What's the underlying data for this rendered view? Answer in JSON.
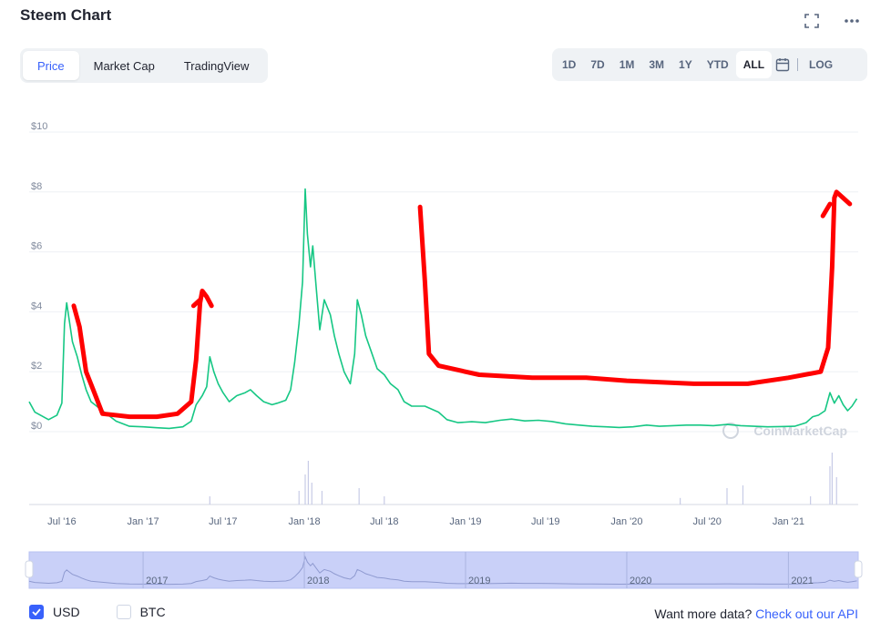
{
  "header": {
    "title": "Steem Chart"
  },
  "tabs": [
    {
      "label": "Price",
      "active": true
    },
    {
      "label": "Market Cap",
      "active": false
    },
    {
      "label": "TradingView",
      "active": false
    }
  ],
  "ranges": [
    {
      "label": "1D",
      "active": false
    },
    {
      "label": "7D",
      "active": false
    },
    {
      "label": "1M",
      "active": false
    },
    {
      "label": "3M",
      "active": false
    },
    {
      "label": "1Y",
      "active": false
    },
    {
      "label": "YTD",
      "active": false
    },
    {
      "label": "ALL",
      "active": true
    }
  ],
  "log_label": "LOG",
  "watermark": "CoinMarketCap",
  "currency": {
    "usd": "USD",
    "btc": "BTC",
    "usd_checked": true,
    "btc_checked": false
  },
  "footer": {
    "prefix": "Want more data?",
    "link": "Check out our API"
  },
  "colors": {
    "accent": "#3861fb",
    "price_line": "#16c784",
    "annotation": "#ff0000",
    "navigator": "#c9d0f8",
    "volume": "#c7cbe6"
  },
  "chart_data": {
    "type": "line",
    "series": [
      {
        "values": [
          [
            "2016-04-18",
            1.0
          ],
          [
            "2016-05-01",
            0.65
          ],
          [
            "2016-06-01",
            0.4
          ],
          [
            "2016-06-20",
            0.55
          ],
          [
            "2016-07-01",
            0.95
          ],
          [
            "2016-07-07",
            3.6
          ],
          [
            "2016-07-12",
            4.3
          ],
          [
            "2016-07-18",
            3.7
          ],
          [
            "2016-07-25",
            3.0
          ],
          [
            "2016-08-05",
            2.5
          ],
          [
            "2016-08-15",
            1.9
          ],
          [
            "2016-08-25",
            1.4
          ],
          [
            "2016-09-05",
            1.0
          ],
          [
            "2016-10-01",
            0.7
          ],
          [
            "2016-11-01",
            0.35
          ],
          [
            "2016-12-01",
            0.18
          ],
          [
            "2017-01-01",
            0.16
          ],
          [
            "2017-02-01",
            0.13
          ],
          [
            "2017-03-01",
            0.11
          ],
          [
            "2017-04-01",
            0.16
          ],
          [
            "2017-04-20",
            0.35
          ],
          [
            "2017-05-01",
            0.9
          ],
          [
            "2017-05-15",
            1.2
          ],
          [
            "2017-05-25",
            1.5
          ],
          [
            "2017-06-01",
            2.5
          ],
          [
            "2017-06-10",
            2.0
          ],
          [
            "2017-06-20",
            1.6
          ],
          [
            "2017-07-01",
            1.3
          ],
          [
            "2017-07-15",
            1.0
          ],
          [
            "2017-08-01",
            1.2
          ],
          [
            "2017-08-20",
            1.3
          ],
          [
            "2017-09-01",
            1.4
          ],
          [
            "2017-09-15",
            1.2
          ],
          [
            "2017-10-01",
            1.0
          ],
          [
            "2017-10-20",
            0.9
          ],
          [
            "2017-11-01",
            0.95
          ],
          [
            "2017-11-20",
            1.05
          ],
          [
            "2017-12-01",
            1.4
          ],
          [
            "2017-12-10",
            2.3
          ],
          [
            "2017-12-20",
            3.6
          ],
          [
            "2017-12-28",
            5.0
          ],
          [
            "2018-01-03",
            8.1
          ],
          [
            "2018-01-08",
            6.6
          ],
          [
            "2018-01-15",
            5.5
          ],
          [
            "2018-01-20",
            6.2
          ],
          [
            "2018-01-28",
            4.8
          ],
          [
            "2018-02-05",
            3.4
          ],
          [
            "2018-02-15",
            4.4
          ],
          [
            "2018-03-01",
            3.9
          ],
          [
            "2018-03-10",
            3.2
          ],
          [
            "2018-03-20",
            2.6
          ],
          [
            "2018-04-01",
            2.0
          ],
          [
            "2018-04-15",
            1.6
          ],
          [
            "2018-04-25",
            2.6
          ],
          [
            "2018-05-01",
            4.4
          ],
          [
            "2018-05-10",
            3.9
          ],
          [
            "2018-05-20",
            3.2
          ],
          [
            "2018-06-01",
            2.7
          ],
          [
            "2018-06-15",
            2.1
          ],
          [
            "2018-07-01",
            1.9
          ],
          [
            "2018-07-15",
            1.6
          ],
          [
            "2018-08-01",
            1.4
          ],
          [
            "2018-08-15",
            1.0
          ],
          [
            "2018-09-01",
            0.85
          ],
          [
            "2018-10-01",
            0.85
          ],
          [
            "2018-11-01",
            0.65
          ],
          [
            "2018-11-20",
            0.4
          ],
          [
            "2018-12-15",
            0.3
          ],
          [
            "2019-01-15",
            0.33
          ],
          [
            "2019-02-15",
            0.3
          ],
          [
            "2019-03-20",
            0.38
          ],
          [
            "2019-04-15",
            0.42
          ],
          [
            "2019-05-15",
            0.36
          ],
          [
            "2019-06-15",
            0.38
          ],
          [
            "2019-07-15",
            0.34
          ],
          [
            "2019-08-15",
            0.26
          ],
          [
            "2019-09-15",
            0.22
          ],
          [
            "2019-10-15",
            0.18
          ],
          [
            "2019-11-15",
            0.16
          ],
          [
            "2019-12-15",
            0.14
          ],
          [
            "2020-01-15",
            0.16
          ],
          [
            "2020-02-15",
            0.22
          ],
          [
            "2020-03-15",
            0.18
          ],
          [
            "2020-04-15",
            0.2
          ],
          [
            "2020-05-15",
            0.22
          ],
          [
            "2020-06-15",
            0.22
          ],
          [
            "2020-07-15",
            0.2
          ],
          [
            "2020-08-15",
            0.24
          ],
          [
            "2020-09-15",
            0.2
          ],
          [
            "2020-10-15",
            0.18
          ],
          [
            "2020-11-15",
            0.16
          ],
          [
            "2020-12-15",
            0.17
          ],
          [
            "2021-01-15",
            0.18
          ],
          [
            "2021-02-10",
            0.3
          ],
          [
            "2021-02-25",
            0.5
          ],
          [
            "2021-03-10",
            0.55
          ],
          [
            "2021-03-25",
            0.7
          ],
          [
            "2021-04-05",
            1.3
          ],
          [
            "2021-04-15",
            0.95
          ],
          [
            "2021-04-25",
            1.2
          ],
          [
            "2021-05-05",
            0.9
          ],
          [
            "2021-05-15",
            0.7
          ],
          [
            "2021-05-25",
            0.85
          ],
          [
            "2021-06-05",
            1.1
          ]
        ]
      }
    ],
    "x_range": [
      "2016-04-18",
      "2021-06-08"
    ],
    "ylim": [
      0,
      10
    ],
    "yticks": [
      "$0",
      "$2",
      "$4",
      "$6",
      "$8",
      "$10"
    ],
    "y_values": [
      0,
      2,
      4,
      6,
      8,
      10
    ],
    "xticks": [
      {
        "date": "2016-07-01",
        "label": "Jul '16"
      },
      {
        "date": "2017-01-01",
        "label": "Jan '17"
      },
      {
        "date": "2017-07-01",
        "label": "Jul '17"
      },
      {
        "date": "2018-01-01",
        "label": "Jan '18"
      },
      {
        "date": "2018-07-01",
        "label": "Jul '18"
      },
      {
        "date": "2019-01-01",
        "label": "Jan '19"
      },
      {
        "date": "2019-07-01",
        "label": "Jul '19"
      },
      {
        "date": "2020-01-01",
        "label": "Jan '20"
      },
      {
        "date": "2020-07-01",
        "label": "Jul '20"
      },
      {
        "date": "2021-01-01",
        "label": "Jan '21"
      }
    ],
    "navigator_ticks": [
      {
        "date": "2017-01-01",
        "label": "2017"
      },
      {
        "date": "2018-01-01",
        "label": "2018"
      },
      {
        "date": "2019-01-01",
        "label": "2019"
      },
      {
        "date": "2020-01-01",
        "label": "2020"
      },
      {
        "date": "2021-01-01",
        "label": "2021"
      }
    ],
    "grid": true,
    "volume_spikes": [
      [
        "2017-06-01",
        0.15
      ],
      [
        "2017-12-20",
        0.25
      ],
      [
        "2018-01-03",
        0.55
      ],
      [
        "2018-01-10",
        0.8
      ],
      [
        "2018-01-18",
        0.4
      ],
      [
        "2018-02-10",
        0.25
      ],
      [
        "2018-05-05",
        0.3
      ],
      [
        "2018-07-01",
        0.15
      ],
      [
        "2020-05-01",
        0.12
      ],
      [
        "2020-08-15",
        0.3
      ],
      [
        "2020-09-20",
        0.35
      ],
      [
        "2021-02-20",
        0.15
      ],
      [
        "2021-04-05",
        0.7
      ],
      [
        "2021-04-10",
        0.95
      ],
      [
        "2021-04-20",
        0.5
      ]
    ],
    "annotations": [
      {
        "points": [
          [
            "2016-07-28",
            4.2
          ],
          [
            "2016-08-10",
            3.5
          ],
          [
            "2016-08-25",
            2.0
          ],
          [
            "2016-09-10",
            1.4
          ],
          [
            "2016-10-01",
            0.6
          ],
          [
            "2016-12-01",
            0.5
          ],
          [
            "2017-02-01",
            0.5
          ],
          [
            "2017-03-20",
            0.6
          ],
          [
            "2017-04-20",
            1.0
          ],
          [
            "2017-05-01",
            2.4
          ],
          [
            "2017-05-10",
            4.3
          ],
          [
            "2017-05-15",
            4.7
          ],
          [
            "2017-05-25",
            4.5
          ],
          [
            "2017-06-05",
            4.2
          ]
        ]
      },
      {
        "points": [
          [
            "2017-04-25",
            4.2
          ],
          [
            "2017-05-10",
            4.4
          ]
        ]
      },
      {
        "points": [
          [
            "2018-09-20",
            7.5
          ],
          [
            "2018-10-01",
            5.0
          ],
          [
            "2018-10-10",
            2.6
          ],
          [
            "2018-11-01",
            2.2
          ],
          [
            "2019-02-01",
            1.9
          ],
          [
            "2019-06-01",
            1.8
          ],
          [
            "2019-10-01",
            1.8
          ],
          [
            "2020-01-01",
            1.7
          ],
          [
            "2020-06-01",
            1.6
          ],
          [
            "2020-10-01",
            1.6
          ],
          [
            "2021-01-01",
            1.8
          ],
          [
            "2021-03-15",
            2.0
          ],
          [
            "2021-04-01",
            2.8
          ],
          [
            "2021-04-10",
            5.5
          ],
          [
            "2021-04-15",
            7.8
          ],
          [
            "2021-04-20",
            8.0
          ],
          [
            "2021-05-05",
            7.8
          ],
          [
            "2021-05-20",
            7.6
          ]
        ]
      },
      {
        "points": [
          [
            "2021-03-20",
            7.2
          ],
          [
            "2021-04-05",
            7.6
          ]
        ]
      }
    ]
  }
}
